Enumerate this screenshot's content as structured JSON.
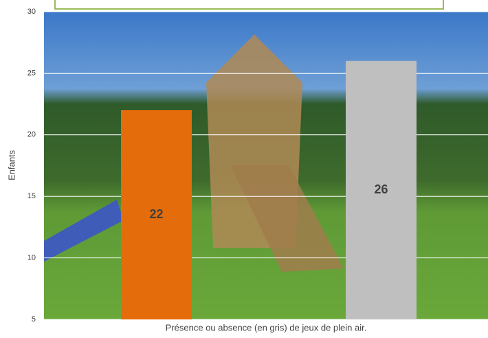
{
  "chart_data": {
    "type": "bar",
    "values": [
      22,
      26
    ],
    "colors": [
      "#e46c0a",
      "#bfbfbf"
    ],
    "ylim": [
      5,
      30
    ],
    "yticks": [
      5,
      10,
      15,
      20,
      25,
      30
    ],
    "grid": true,
    "y_label": "Enfants",
    "x_label": "Présence ou absence (en gris) de jeux de plein air."
  }
}
